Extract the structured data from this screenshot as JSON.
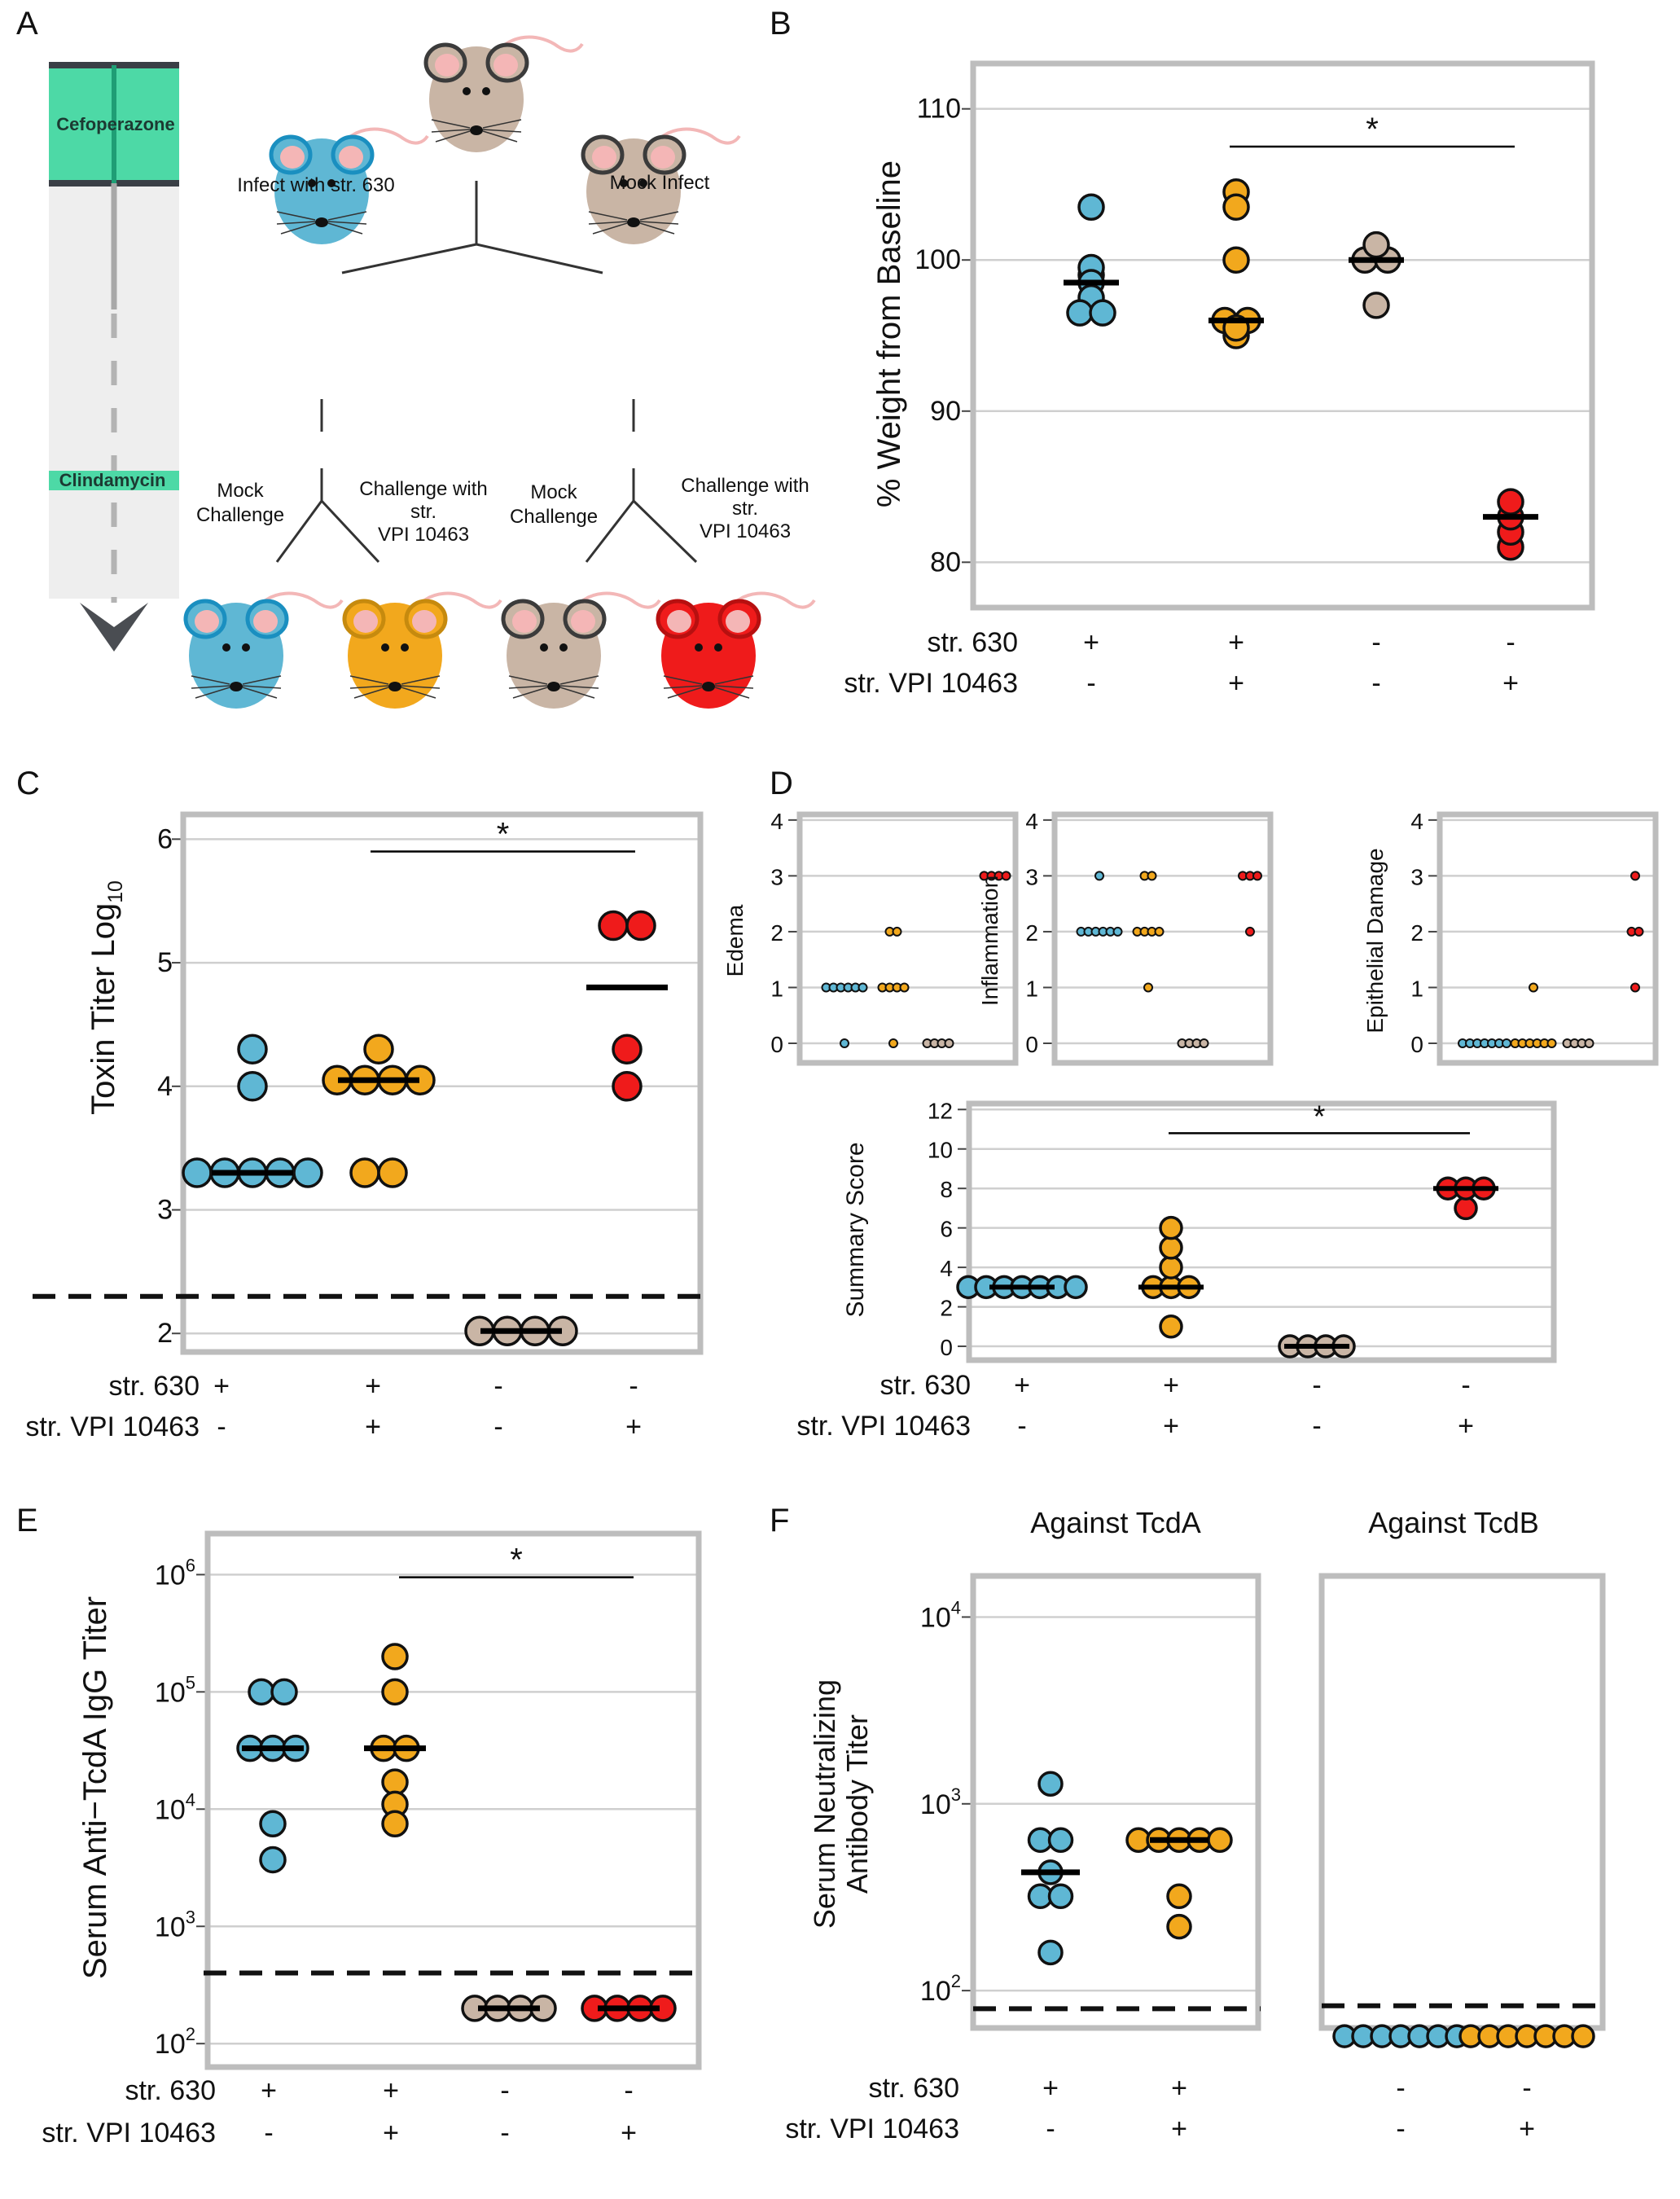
{
  "colors": {
    "blue": "#5fb7d4",
    "orange": "#f2a81d",
    "tan": "#c9b5a5",
    "red": "#ef1b1b",
    "gridline": "#cfcfcf",
    "frame": "#bdbdbd",
    "timeline_teal": "#4dd9a6"
  },
  "panel_letters": [
    "A",
    "B",
    "C",
    "D",
    "E",
    "F"
  ],
  "panel_a": {
    "timeline": {
      "top_label": "Cefoperazone",
      "bottom_label": "Clindamycin"
    },
    "mouse_labels": {
      "infect": "Infect with str. 630",
      "mock_infect": "Mock Infect",
      "mock_challenge_1": "Mock\nChallenge",
      "challenge_1": "Challenge with\nstr.\nVPI 10463",
      "mock_challenge_2": "Mock\nChallenge",
      "challenge_2": "Challenge with\nstr.\nVPI 10463"
    },
    "mouse_colors": [
      "tan",
      "blue",
      "tan",
      "blue",
      "orange",
      "tan",
      "red"
    ]
  },
  "conditions": {
    "row1_label": "str. 630",
    "row2_label": "str. VPI 10463",
    "row1": [
      "+",
      "+",
      "-",
      "-"
    ],
    "row2": [
      "-",
      "+",
      "-",
      "+"
    ]
  },
  "significance": "*",
  "chart_data": [
    {
      "panel": "B",
      "type": "scatter",
      "ylabel": "% Weight from Baseline",
      "ylim": [
        77,
        113
      ],
      "yticks": [
        80,
        90,
        100,
        110
      ],
      "groups": [
        {
          "color": "blue",
          "values": [
            103.5,
            99.5,
            99,
            98.5,
            97.5,
            96.5,
            96.5
          ],
          "median": 98.5
        },
        {
          "color": "orange",
          "values": [
            104.5,
            103.5,
            100,
            96,
            96,
            95.5,
            95
          ],
          "median": 96
        },
        {
          "color": "tan",
          "values": [
            101,
            100,
            100,
            97
          ],
          "median": 100
        },
        {
          "color": "red",
          "values": [
            84,
            83,
            82,
            81
          ],
          "median": 83
        }
      ],
      "significance": {
        "from_group": 1,
        "to_group": 3,
        "y": 107.5
      }
    },
    {
      "panel": "C",
      "type": "scatter",
      "ylabel": "Toxin Titer Log",
      "ylabel_sub": "10",
      "ylim": [
        1.85,
        6.2
      ],
      "yticks": [
        2,
        3,
        4,
        5,
        6
      ],
      "detection_limit": 2.3,
      "groups": [
        {
          "color": "blue",
          "values": [
            4.3,
            4.0,
            3.3,
            3.3,
            3.3,
            3.3,
            3.3
          ],
          "median": 3.3
        },
        {
          "color": "orange",
          "values": [
            4.3,
            4.05,
            4.05,
            4.05,
            4.05,
            3.3,
            3.3
          ],
          "median": 4.05
        },
        {
          "color": "tan",
          "values": [
            2.02,
            2.02,
            2.02,
            2.02
          ],
          "median": 2.02
        },
        {
          "color": "red",
          "values": [
            5.3,
            5.3,
            4.3,
            4.0
          ],
          "median": 4.8
        }
      ],
      "significance": {
        "from_group": 1,
        "to_group": 3,
        "y": 5.9
      }
    },
    {
      "panel": "D",
      "type": "scatter",
      "subpanel": "Edema",
      "ylabel": "Edema",
      "ylim": [
        -0.35,
        4.1
      ],
      "yticks": [
        0,
        1,
        2,
        3,
        4
      ],
      "groups": [
        {
          "color": "blue",
          "values": [
            1,
            1,
            1,
            1,
            1,
            1,
            0
          ]
        },
        {
          "color": "orange",
          "values": [
            2,
            2,
            1,
            1,
            1,
            1,
            0
          ]
        },
        {
          "color": "tan",
          "values": [
            0,
            0,
            0,
            0
          ]
        },
        {
          "color": "red",
          "values": [
            3,
            3,
            3,
            3
          ]
        }
      ]
    },
    {
      "panel": "D",
      "type": "scatter",
      "subpanel": "Inflammation",
      "ylabel": "Inflammation",
      "ylim": [
        -0.35,
        4.1
      ],
      "yticks": [
        0,
        1,
        2,
        3,
        4
      ],
      "groups": [
        {
          "color": "blue",
          "values": [
            3,
            2,
            2,
            2,
            2,
            2,
            2
          ]
        },
        {
          "color": "orange",
          "values": [
            3,
            3,
            2,
            2,
            2,
            2,
            1
          ]
        },
        {
          "color": "tan",
          "values": [
            0,
            0,
            0,
            0
          ]
        },
        {
          "color": "red",
          "values": [
            3,
            3,
            3,
            2
          ]
        }
      ]
    },
    {
      "panel": "D",
      "type": "scatter",
      "subpanel": "Epithelial Damage",
      "ylabel": "Epithelial Damage",
      "ylim": [
        -0.35,
        4.1
      ],
      "yticks": [
        0,
        1,
        2,
        3,
        4
      ],
      "groups": [
        {
          "color": "blue",
          "values": [
            0,
            0,
            0,
            0,
            0,
            0,
            0
          ]
        },
        {
          "color": "orange",
          "values": [
            1,
            0,
            0,
            0,
            0,
            0,
            0
          ]
        },
        {
          "color": "tan",
          "values": [
            0,
            0,
            0,
            0
          ]
        },
        {
          "color": "red",
          "values": [
            3,
            2,
            2,
            1
          ]
        }
      ]
    },
    {
      "panel": "D",
      "type": "scatter",
      "subpanel": "Summary Score",
      "ylabel": "Summary Score",
      "ylim": [
        -0.7,
        12.3
      ],
      "yticks": [
        0,
        2,
        4,
        6,
        8,
        10,
        12
      ],
      "groups": [
        {
          "color": "blue",
          "values": [
            3,
            3,
            3,
            3,
            3,
            3,
            3
          ],
          "median": 3
        },
        {
          "color": "orange",
          "values": [
            6,
            5,
            4,
            3,
            3,
            3,
            1
          ],
          "median": 3
        },
        {
          "color": "tan",
          "values": [
            0,
            0,
            0,
            0
          ],
          "median": 0
        },
        {
          "color": "red",
          "values": [
            8,
            8,
            8,
            7
          ],
          "median": 8
        }
      ],
      "significance": {
        "from_group": 1,
        "to_group": 3,
        "y": 10.8
      }
    },
    {
      "panel": "E",
      "type": "scatter",
      "ylabel": "Serum Anti−TcdA IgG Titer",
      "log_scale": true,
      "ylim_log10": [
        1.8,
        6.35
      ],
      "yticks": [
        {
          "base": "10",
          "exp": "2",
          "value": 100
        },
        {
          "base": "10",
          "exp": "3",
          "value": 1000
        },
        {
          "base": "10",
          "exp": "4",
          "value": 10000
        },
        {
          "base": "10",
          "exp": "5",
          "value": 100000
        },
        {
          "base": "10",
          "exp": "6",
          "value": 1000000
        }
      ],
      "detection_limit": 400,
      "groups": [
        {
          "color": "blue",
          "values": [
            100000,
            100000,
            33000,
            33000,
            33000,
            7500,
            3700
          ],
          "median": 33000
        },
        {
          "color": "orange",
          "values": [
            200000,
            100000,
            33000,
            33000,
            17000,
            11000,
            7500
          ],
          "median": 33000
        },
        {
          "color": "tan",
          "values": [
            200,
            200,
            200,
            200
          ],
          "median": 200
        },
        {
          "color": "red",
          "values": [
            200,
            200,
            200,
            200
          ],
          "median": 200
        }
      ],
      "significance": {
        "from_group": 1,
        "to_group": 3,
        "y": 950000
      }
    },
    {
      "panel": "F",
      "type": "scatter",
      "subtitle": "Against TcdA",
      "ylabel": "Serum Neutralizing\nAntibody Titer",
      "log_scale": true,
      "ylim_log10": [
        1.8,
        4.22
      ],
      "yticks": [
        {
          "base": "10",
          "exp": "2",
          "value": 100
        },
        {
          "base": "10",
          "exp": "3",
          "value": 1000
        },
        {
          "base": "10",
          "exp": "4",
          "value": 10000
        }
      ],
      "detection_limit": 80,
      "groups": [
        {
          "color": "blue",
          "values": [
            1280,
            640,
            640,
            430,
            320,
            320,
            160
          ],
          "median": 430
        },
        {
          "color": "orange",
          "values": [
            640,
            640,
            640,
            640,
            640,
            320,
            220
          ],
          "median": 640
        }
      ]
    },
    {
      "panel": "F",
      "type": "scatter",
      "subtitle": "Against TcdB",
      "log_scale": true,
      "ylim_log10": [
        1.8,
        4.22
      ],
      "detection_limit": 83,
      "groups": [
        {
          "color": "blue",
          "values": [
            57,
            57,
            57,
            57,
            57,
            57,
            57
          ]
        },
        {
          "color": "orange",
          "values": [
            57,
            57,
            57,
            57,
            57,
            57,
            57
          ]
        }
      ]
    }
  ]
}
